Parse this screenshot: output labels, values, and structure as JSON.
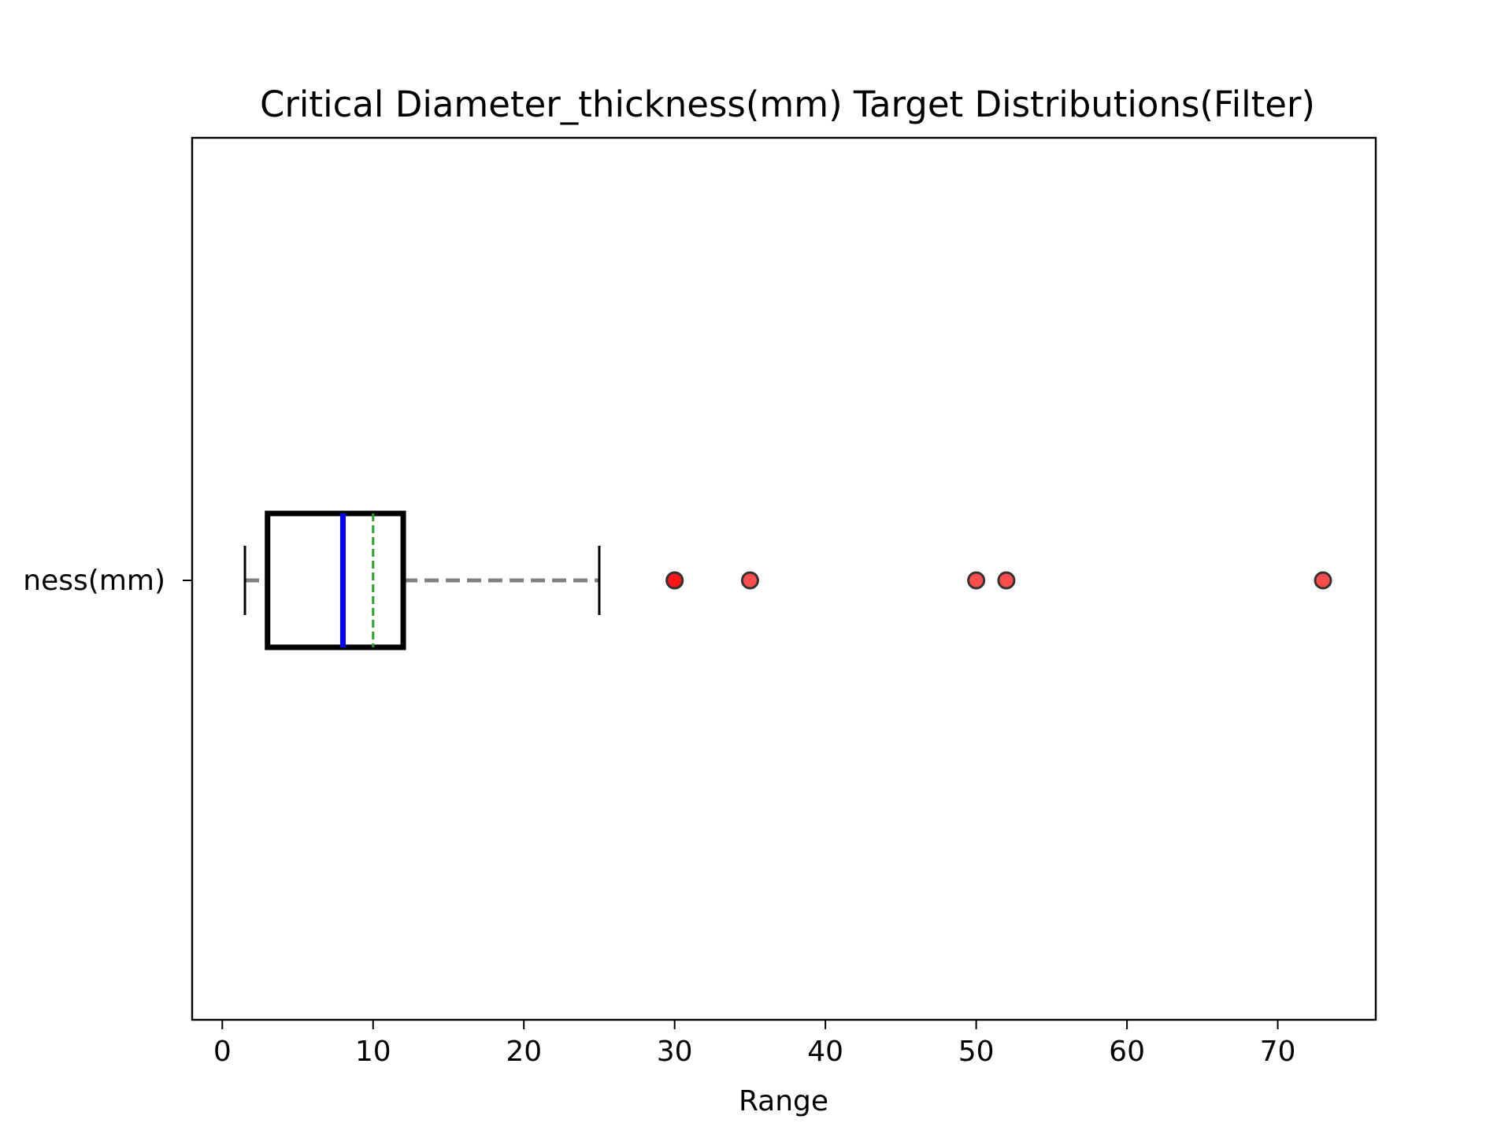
{
  "chart_data": {
    "type": "box",
    "orientation": "horizontal",
    "title": "Critical Diameter_thickness(mm) Target Distributions(Filter)",
    "xlabel": "Range",
    "ylabel": "",
    "category_label_visible": "ness(mm)",
    "xlim": [
      -2,
      76.5
    ],
    "xticks": [
      0,
      10,
      20,
      30,
      40,
      50,
      60,
      70
    ],
    "xtick_labels": [
      "0",
      "10",
      "20",
      "30",
      "40",
      "50",
      "60",
      "70"
    ],
    "grid": false,
    "box": {
      "whisker_low": 1.5,
      "q1": 3,
      "median": 8,
      "mean": 10,
      "q3": 12,
      "whisker_high": 25
    },
    "outliers": [
      30,
      30,
      35,
      50,
      52,
      73
    ],
    "colors": {
      "box_edge": "#000000",
      "median": "#0000ff",
      "mean": "#2ca02c",
      "whisker": "#808080",
      "cap": "#000000",
      "outlier_fill": "#ff0000",
      "outlier_edge": "#333333"
    }
  }
}
